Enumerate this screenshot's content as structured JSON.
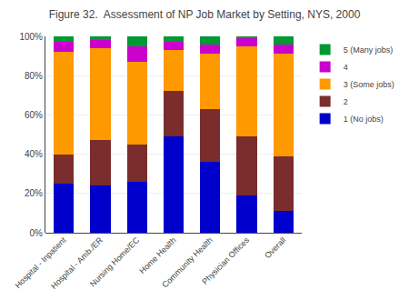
{
  "chart_data": {
    "type": "bar",
    "title": "Figure 32.  Assessment of NP Job Market by Setting, NYS, 2000",
    "categories": [
      "Hospital - Inpatient",
      "Hospital - Amb./ER",
      "Nursing Home/EC",
      "Home Health",
      "Community Health",
      "Physician Offices",
      "Overall"
    ],
    "series": [
      {
        "name": "1 (No jobs)",
        "color": "#0000CC",
        "values": [
          25,
          24,
          26,
          49,
          36,
          19,
          11
        ]
      },
      {
        "name": "2",
        "color": "#7B2D2D",
        "values": [
          15,
          23,
          19,
          23,
          27,
          30,
          28
        ]
      },
      {
        "name": "3 (Some jobs)",
        "color": "#FF9900",
        "values": [
          52,
          47,
          42,
          21,
          28,
          46,
          52
        ]
      },
      {
        "name": "4",
        "color": "#CC00CC",
        "values": [
          5,
          4,
          8,
          4,
          5,
          4,
          5
        ]
      },
      {
        "name": "5 (Many jobs)",
        "color": "#009933",
        "values": [
          3,
          2,
          5,
          3,
          4,
          1,
          4
        ]
      }
    ],
    "stacked": true,
    "ylim": [
      0,
      100
    ],
    "yticks": [
      {
        "value": 0,
        "label": "0%"
      },
      {
        "value": 20,
        "label": "20%"
      },
      {
        "value": 40,
        "label": "40%"
      },
      {
        "value": 60,
        "label": "60%"
      },
      {
        "value": 80,
        "label": "80%"
      },
      {
        "value": 100,
        "label": "100%"
      }
    ],
    "grid": true,
    "legend": "right"
  }
}
